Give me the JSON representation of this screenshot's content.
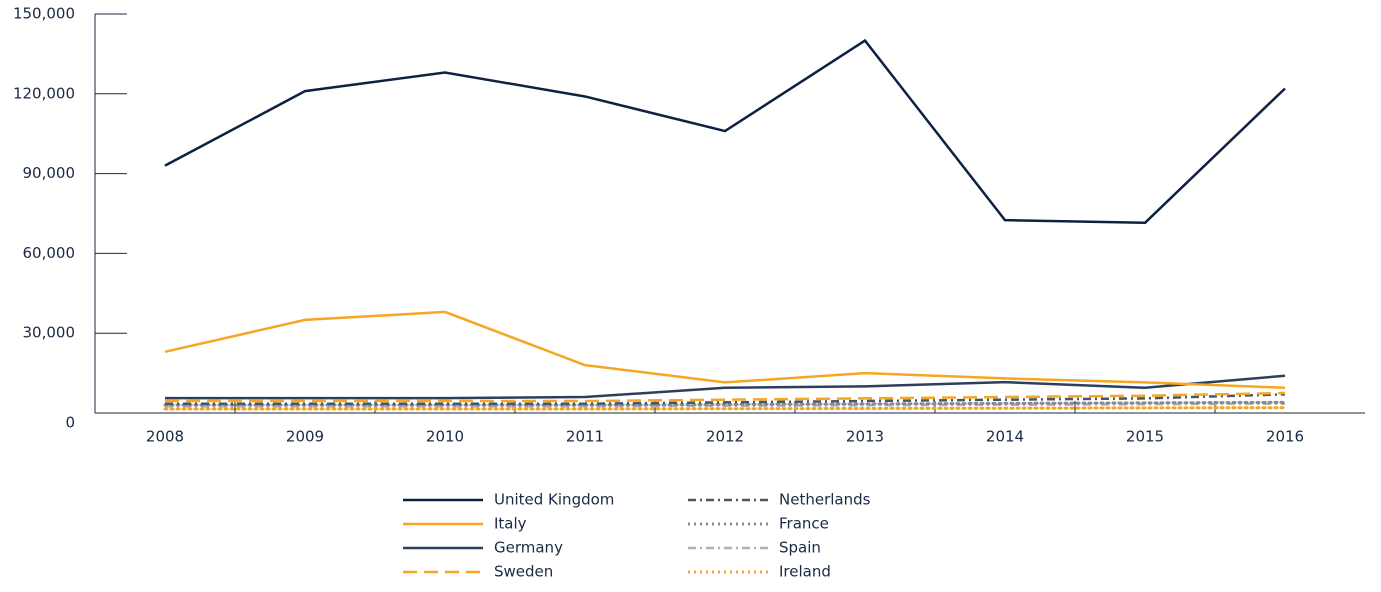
{
  "chart_data": {
    "type": "line",
    "categories": [
      "2008",
      "2009",
      "2010",
      "2011",
      "2012",
      "2013",
      "2014",
      "2015",
      "2016"
    ],
    "series": [
      {
        "name": "United Kingdom",
        "color": "#0d2240",
        "dash": "solid",
        "values": [
          93000,
          121000,
          128000,
          119000,
          106000,
          140000,
          72500,
          71500,
          122000
        ]
      },
      {
        "name": "Italy",
        "color": "#f5a623",
        "dash": "solid",
        "values": [
          23000,
          35000,
          38000,
          18000,
          11500,
          15000,
          13000,
          11500,
          9500
        ]
      },
      {
        "name": "Germany",
        "color": "#2e3e5c",
        "dash": "solid",
        "values": [
          5600,
          5600,
          5600,
          6000,
          9500,
          10000,
          11600,
          9500,
          14000
        ]
      },
      {
        "name": "Sweden",
        "color": "#f5a623",
        "dash": "dashed",
        "values": [
          4500,
          4500,
          4500,
          4500,
          5000,
          5500,
          6000,
          6500,
          7500
        ]
      },
      {
        "name": "Netherlands",
        "color": "#4a5568",
        "dash": "dashdot",
        "values": [
          3500,
          3500,
          3500,
          3500,
          4000,
          4500,
          5000,
          5500,
          7000
        ]
      },
      {
        "name": "France",
        "color": "#8a8a94",
        "dash": "dotted",
        "values": [
          3000,
          3000,
          3000,
          3000,
          3200,
          3400,
          3600,
          3800,
          4000
        ]
      },
      {
        "name": "Spain",
        "color": "#b0b0b0",
        "dash": "dashdot",
        "values": [
          2500,
          2500,
          2500,
          2500,
          2700,
          2900,
          3100,
          3300,
          3500
        ]
      },
      {
        "name": "Ireland",
        "color": "#f5a623",
        "dash": "dotted",
        "values": [
          1500,
          1500,
          1500,
          1500,
          1600,
          1700,
          1800,
          1900,
          2000
        ]
      }
    ],
    "ylim": [
      0,
      150000
    ],
    "yticks": [
      0,
      {
        "value": 30000,
        "label": "30,000"
      },
      {
        "value": 60000,
        "label": "60,000"
      },
      {
        "value": 90000,
        "label": "90,000"
      },
      {
        "value": 120000,
        "label": "120,000"
      },
      {
        "value": 150000,
        "label": "150,000"
      }
    ],
    "legend": "bottom"
  }
}
